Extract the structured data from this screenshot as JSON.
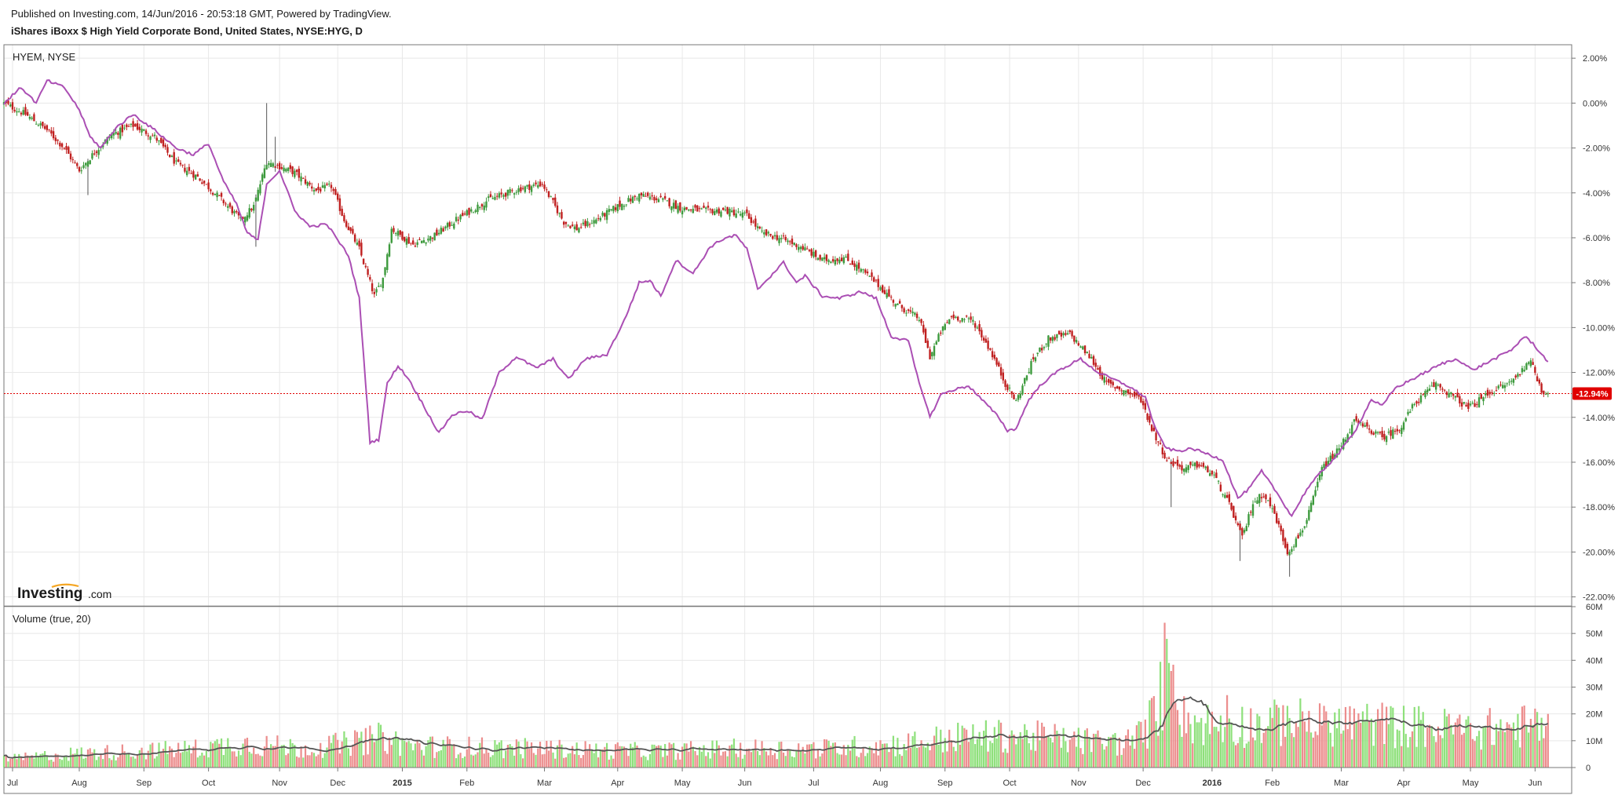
{
  "header": {
    "published": "Published on Investing.com, 14/Jun/2016 - 20:53:18 GMT, Powered by TradingView.",
    "instrument": "iShares iBoxx $ High Yield Corporate Bond, United States, NYSE:HYG, D"
  },
  "colors": {
    "up": "#3d9a3d",
    "down": "#c02020",
    "compare_line": "#ab4fb4",
    "volume_up": "#8ee07b",
    "volume_down": "#ec8d8d",
    "volume_ma": "#555555",
    "last_price": "#e00000"
  },
  "chart_data": [
    {
      "type": "line",
      "title": "HYEM, NYSE",
      "comparison_series": "HYEM, NYSE",
      "watermark": {
        "brand": "Investing",
        "suffix": ".com"
      },
      "y_unit": "%",
      "ylim": [
        -22.4,
        2.6
      ],
      "y_ticks": [
        "2.00%",
        "0.00%",
        "-2.00%",
        "-4.00%",
        "-6.00%",
        "-8.00%",
        "-10.00%",
        "-12.00%",
        "-14.00%",
        "-16.00%",
        "-18.00%",
        "-20.00%",
        "-22.00%"
      ],
      "last_value_label": "-12.94%",
      "last_value": -12.94,
      "x_ticks": [
        {
          "label": "Jul",
          "t": 4
        },
        {
          "label": "Aug",
          "t": 35
        },
        {
          "label": "Sep",
          "t": 65
        },
        {
          "label": "Oct",
          "t": 95
        },
        {
          "label": "Nov",
          "t": 128
        },
        {
          "label": "Dec",
          "t": 155
        },
        {
          "label": "2015",
          "t": 185,
          "bold": true
        },
        {
          "label": "Feb",
          "t": 215
        },
        {
          "label": "Mar",
          "t": 251
        },
        {
          "label": "Apr",
          "t": 285
        },
        {
          "label": "May",
          "t": 315
        },
        {
          "label": "Jun",
          "t": 344
        },
        {
          "label": "Jul",
          "t": 376
        },
        {
          "label": "Aug",
          "t": 407
        },
        {
          "label": "Sep",
          "t": 437
        },
        {
          "label": "Oct",
          "t": 467
        },
        {
          "label": "Nov",
          "t": 499
        },
        {
          "label": "Dec",
          "t": 529
        },
        {
          "label": "2016",
          "t": 561,
          "bold": true
        },
        {
          "label": "Feb",
          "t": 589
        },
        {
          "label": "Mar",
          "t": 621
        },
        {
          "label": "Apr",
          "t": 650
        },
        {
          "label": "May",
          "t": 681
        },
        {
          "label": "Jun",
          "t": 711
        }
      ],
      "x_domain": [
        0,
        728
      ],
      "hyg_anchors": [
        [
          0,
          0
        ],
        [
          10,
          -0.5
        ],
        [
          20,
          -1.2
        ],
        [
          28,
          -2.0
        ],
        [
          35,
          -3.0
        ],
        [
          42,
          -2.2
        ],
        [
          50,
          -1.4
        ],
        [
          60,
          -1.0
        ],
        [
          70,
          -1.5
        ],
        [
          80,
          -2.7
        ],
        [
          90,
          -3.3
        ],
        [
          100,
          -4.2
        ],
        [
          110,
          -5.2
        ],
        [
          116,
          -4.6
        ],
        [
          122,
          -2.6
        ],
        [
          135,
          -3.1
        ],
        [
          145,
          -3.9
        ],
        [
          152,
          -3.7
        ],
        [
          158,
          -5.2
        ],
        [
          165,
          -6.5
        ],
        [
          172,
          -8.6
        ],
        [
          176,
          -7.8
        ],
        [
          180,
          -5.6
        ],
        [
          190,
          -6.3
        ],
        [
          200,
          -5.9
        ],
        [
          210,
          -5.2
        ],
        [
          225,
          -4.3
        ],
        [
          240,
          -3.8
        ],
        [
          250,
          -3.6
        ],
        [
          260,
          -5.3
        ],
        [
          266,
          -5.6
        ],
        [
          275,
          -5.2
        ],
        [
          285,
          -4.6
        ],
        [
          295,
          -4.1
        ],
        [
          305,
          -4.3
        ],
        [
          315,
          -4.7
        ],
        [
          325,
          -4.8
        ],
        [
          335,
          -4.8
        ],
        [
          345,
          -5.0
        ],
        [
          352,
          -5.8
        ],
        [
          360,
          -6.0
        ],
        [
          370,
          -6.4
        ],
        [
          380,
          -7.0
        ],
        [
          390,
          -6.9
        ],
        [
          395,
          -7.2
        ],
        [
          405,
          -8.0
        ],
        [
          415,
          -9.0
        ],
        [
          425,
          -9.6
        ],
        [
          430,
          -11.3
        ],
        [
          435,
          -10.2
        ],
        [
          440,
          -9.5
        ],
        [
          450,
          -9.7
        ],
        [
          458,
          -11.0
        ],
        [
          465,
          -12.5
        ],
        [
          470,
          -13.3
        ],
        [
          478,
          -11.4
        ],
        [
          485,
          -10.5
        ],
        [
          495,
          -10.3
        ],
        [
          505,
          -11.4
        ],
        [
          512,
          -12.5
        ],
        [
          520,
          -12.8
        ],
        [
          528,
          -13.2
        ],
        [
          533,
          -14.5
        ],
        [
          540,
          -15.9
        ],
        [
          548,
          -16.3
        ],
        [
          555,
          -16.1
        ],
        [
          562,
          -16.6
        ],
        [
          570,
          -18.1
        ],
        [
          575,
          -19.4
        ],
        [
          580,
          -17.8
        ],
        [
          585,
          -17.4
        ],
        [
          590,
          -18.3
        ],
        [
          596,
          -20.0
        ],
        [
          600,
          -19.5
        ],
        [
          605,
          -18.6
        ],
        [
          612,
          -16.3
        ],
        [
          620,
          -15.4
        ],
        [
          627,
          -14.2
        ],
        [
          635,
          -14.6
        ],
        [
          640,
          -14.9
        ],
        [
          648,
          -14.5
        ],
        [
          655,
          -13.4
        ],
        [
          665,
          -12.5
        ],
        [
          672,
          -13.0
        ],
        [
          680,
          -13.6
        ],
        [
          690,
          -12.9
        ],
        [
          700,
          -12.4
        ],
        [
          705,
          -11.9
        ],
        [
          708,
          -11.4
        ],
        [
          711,
          -12.0
        ],
        [
          714,
          -12.8
        ],
        [
          717,
          -12.94
        ]
      ],
      "hyem_anchors": [
        [
          0,
          0
        ],
        [
          8,
          0.7
        ],
        [
          15,
          0
        ],
        [
          20,
          1.0
        ],
        [
          28,
          0.7
        ],
        [
          35,
          -0.3
        ],
        [
          40,
          -1.5
        ],
        [
          45,
          -2.0
        ],
        [
          52,
          -1.1
        ],
        [
          60,
          -0.5
        ],
        [
          70,
          -1.2
        ],
        [
          80,
          -2.0
        ],
        [
          88,
          -2.3
        ],
        [
          95,
          -1.8
        ],
        [
          102,
          -3.5
        ],
        [
          108,
          -4.5
        ],
        [
          113,
          -5.8
        ],
        [
          118,
          -6.1
        ],
        [
          122,
          -3.6
        ],
        [
          128,
          -3.0
        ],
        [
          135,
          -4.8
        ],
        [
          142,
          -5.5
        ],
        [
          150,
          -5.4
        ],
        [
          160,
          -6.8
        ],
        [
          165,
          -8.7
        ],
        [
          170,
          -15.1
        ],
        [
          174,
          -15.0
        ],
        [
          178,
          -12.5
        ],
        [
          183,
          -11.7
        ],
        [
          188,
          -12.3
        ],
        [
          195,
          -13.5
        ],
        [
          202,
          -14.7
        ],
        [
          208,
          -13.9
        ],
        [
          215,
          -13.7
        ],
        [
          222,
          -14.1
        ],
        [
          230,
          -12.0
        ],
        [
          238,
          -11.3
        ],
        [
          247,
          -11.8
        ],
        [
          255,
          -11.4
        ],
        [
          262,
          -12.3
        ],
        [
          270,
          -11.4
        ],
        [
          280,
          -11.2
        ],
        [
          288,
          -9.7
        ],
        [
          295,
          -8.0
        ],
        [
          300,
          -7.9
        ],
        [
          305,
          -8.6
        ],
        [
          312,
          -7.0
        ],
        [
          320,
          -7.6
        ],
        [
          328,
          -6.4
        ],
        [
          335,
          -6.0
        ],
        [
          340,
          -5.9
        ],
        [
          345,
          -6.5
        ],
        [
          350,
          -8.3
        ],
        [
          355,
          -7.8
        ],
        [
          362,
          -7.1
        ],
        [
          368,
          -8.0
        ],
        [
          372,
          -7.7
        ],
        [
          380,
          -8.6
        ],
        [
          388,
          -8.7
        ],
        [
          398,
          -8.4
        ],
        [
          405,
          -8.7
        ],
        [
          412,
          -10.4
        ],
        [
          420,
          -10.6
        ],
        [
          425,
          -12.5
        ],
        [
          428,
          -13.3
        ],
        [
          430,
          -14.0
        ],
        [
          435,
          -13.0
        ],
        [
          440,
          -12.8
        ],
        [
          448,
          -12.6
        ],
        [
          456,
          -13.4
        ],
        [
          462,
          -14.0
        ],
        [
          466,
          -14.6
        ],
        [
          470,
          -14.5
        ],
        [
          476,
          -13.2
        ],
        [
          482,
          -12.5
        ],
        [
          490,
          -11.9
        ],
        [
          500,
          -11.4
        ],
        [
          508,
          -12.0
        ],
        [
          515,
          -12.3
        ],
        [
          522,
          -12.6
        ],
        [
          530,
          -13.1
        ],
        [
          535,
          -14.6
        ],
        [
          540,
          -15.4
        ],
        [
          545,
          -15.5
        ],
        [
          552,
          -15.4
        ],
        [
          558,
          -15.6
        ],
        [
          566,
          -15.9
        ],
        [
          573,
          -17.6
        ],
        [
          578,
          -17.2
        ],
        [
          584,
          -16.4
        ],
        [
          590,
          -17.2
        ],
        [
          598,
          -18.4
        ],
        [
          605,
          -17.2
        ],
        [
          612,
          -16.4
        ],
        [
          620,
          -15.6
        ],
        [
          628,
          -14.5
        ],
        [
          635,
          -13.2
        ],
        [
          640,
          -13.5
        ],
        [
          646,
          -12.7
        ],
        [
          652,
          -12.4
        ],
        [
          660,
          -12.0
        ],
        [
          668,
          -11.6
        ],
        [
          675,
          -11.4
        ],
        [
          682,
          -11.9
        ],
        [
          690,
          -11.5
        ],
        [
          700,
          -11.0
        ],
        [
          706,
          -10.4
        ],
        [
          710,
          -10.7
        ],
        [
          714,
          -11.2
        ],
        [
          717,
          -11.5
        ]
      ],
      "hyg_spikes": [
        {
          "t": 122,
          "high": 0.0
        },
        {
          "t": 126,
          "high": -1.5
        },
        {
          "t": 39,
          "low": -4.1
        },
        {
          "t": 542,
          "low": -18.0
        },
        {
          "t": 574,
          "low": -20.4
        },
        {
          "t": 597,
          "low": -21.1
        },
        {
          "t": 117,
          "low": -6.4
        }
      ]
    },
    {
      "type": "bar",
      "title": "Volume (true, 20)",
      "ylim": [
        0,
        60
      ],
      "y_unit": "M shares",
      "y_ticks": [
        "60M",
        "50M",
        "40M",
        "30M",
        "20M",
        "10M",
        "0"
      ],
      "volume_anchors": [
        [
          0,
          3
        ],
        [
          30,
          5
        ],
        [
          60,
          6
        ],
        [
          90,
          7
        ],
        [
          110,
          9
        ],
        [
          140,
          7
        ],
        [
          160,
          9
        ],
        [
          175,
          11
        ],
        [
          190,
          8
        ],
        [
          250,
          7
        ],
        [
          300,
          6
        ],
        [
          340,
          7
        ],
        [
          380,
          7
        ],
        [
          420,
          9
        ],
        [
          440,
          11
        ],
        [
          470,
          12
        ],
        [
          500,
          10
        ],
        [
          520,
          9
        ],
        [
          530,
          13
        ],
        [
          538,
          28
        ],
        [
          542,
          44
        ],
        [
          548,
          18
        ],
        [
          560,
          16
        ],
        [
          580,
          16
        ],
        [
          600,
          17
        ],
        [
          640,
          16
        ],
        [
          680,
          14
        ],
        [
          700,
          15
        ],
        [
          717,
          16
        ]
      ],
      "volume_spikes": [
        {
          "t": 539,
          "v": 54
        },
        {
          "t": 540,
          "v": 48
        },
        {
          "t": 541,
          "v": 39
        },
        {
          "t": 542,
          "v": 36
        },
        {
          "t": 568,
          "v": 27
        },
        {
          "t": 596,
          "v": 23
        },
        {
          "t": 613,
          "v": 23
        },
        {
          "t": 627,
          "v": 22
        },
        {
          "t": 671,
          "v": 20
        },
        {
          "t": 717,
          "v": 20
        }
      ]
    }
  ]
}
